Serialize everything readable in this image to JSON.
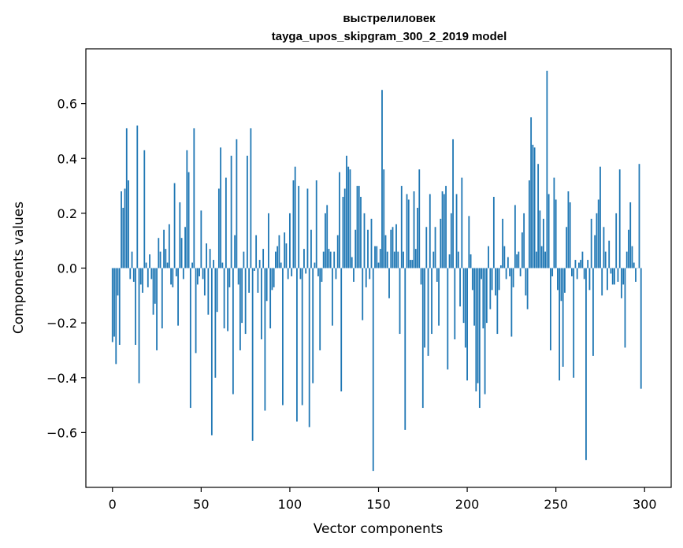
{
  "chart_data": {
    "type": "bar",
    "title_line1": "выстрелиловек",
    "title_line2": "tayga_upos_skipgram_300_2_2019 model",
    "xlabel": "Vector components",
    "ylabel": "Components values",
    "xlim": [
      -15,
      315
    ],
    "ylim": [
      -0.8,
      0.8
    ],
    "xticks": [
      0,
      50,
      100,
      150,
      200,
      250,
      300
    ],
    "xtick_labels": [
      "0",
      "50",
      "100",
      "150",
      "200",
      "250",
      "300"
    ],
    "yticks": [
      -0.6,
      -0.4,
      -0.2,
      0.0,
      0.2,
      0.4,
      0.6
    ],
    "ytick_labels": [
      "−0.6",
      "−0.4",
      "−0.2",
      "0.0",
      "0.2",
      "0.4",
      "0.6"
    ],
    "bar_color": "#1f77b4",
    "values": [
      -0.27,
      -0.25,
      -0.35,
      -0.1,
      -0.28,
      0.28,
      0.22,
      0.29,
      0.51,
      0.32,
      -0.04,
      0.06,
      -0.05,
      -0.28,
      0.52,
      -0.42,
      -0.06,
      -0.09,
      0.43,
      0.02,
      -0.07,
      0.05,
      -0.04,
      -0.17,
      -0.13,
      -0.3,
      0.11,
      0.06,
      -0.22,
      0.14,
      0.07,
      0.02,
      0.16,
      -0.06,
      -0.07,
      0.31,
      -0.03,
      -0.21,
      0.24,
      0.11,
      -0.04,
      0.15,
      0.43,
      0.35,
      -0.51,
      0.02,
      0.51,
      -0.31,
      -0.06,
      -0.03,
      0.21,
      -0.04,
      -0.1,
      0.09,
      -0.17,
      0.07,
      -0.61,
      0.03,
      -0.4,
      -0.16,
      0.29,
      0.44,
      0.02,
      -0.22,
      0.33,
      -0.23,
      -0.07,
      0.41,
      -0.46,
      0.12,
      0.47,
      -0.06,
      -0.3,
      -0.2,
      0.06,
      -0.24,
      0.41,
      -0.09,
      0.51,
      -0.63,
      -0.01,
      0.12,
      -0.09,
      0.03,
      -0.26,
      0.07,
      -0.52,
      -0.12,
      0.2,
      -0.22,
      -0.08,
      -0.07,
      0.06,
      0.08,
      0.12,
      0.02,
      -0.5,
      0.13,
      0.09,
      -0.04,
      0.2,
      -0.03,
      0.32,
      0.37,
      -0.56,
      0.3,
      -0.04,
      -0.5,
      0.07,
      -0.02,
      0.29,
      -0.58,
      0.14,
      -0.42,
      0.02,
      0.32,
      -0.03,
      -0.3,
      -0.05,
      0.06,
      0.2,
      0.23,
      0.07,
      0.06,
      -0.21,
      0.06,
      -0.04,
      0.12,
      0.35,
      -0.45,
      0.26,
      0.29,
      0.41,
      0.37,
      0.36,
      0.04,
      -0.05,
      0.14,
      0.3,
      0.3,
      0.26,
      -0.19,
      0.2,
      -0.07,
      0.14,
      -0.04,
      0.18,
      -0.74,
      0.08,
      0.08,
      0.02,
      0.07,
      0.65,
      0.36,
      0.12,
      0.06,
      -0.11,
      0.14,
      0.15,
      0.06,
      0.16,
      0.06,
      -0.24,
      0.3,
      0.06,
      -0.59,
      0.27,
      0.25,
      0.03,
      0.03,
      0.28,
      0.07,
      0.22,
      0.36,
      -0.06,
      -0.51,
      -0.29,
      0.15,
      -0.32,
      0.27,
      -0.24,
      0.06,
      0.15,
      -0.05,
      -0.21,
      0.18,
      0.28,
      0.27,
      0.3,
      -0.37,
      0.05,
      0.2,
      0.47,
      -0.26,
      0.27,
      0.06,
      -0.14,
      0.33,
      -0.2,
      -0.29,
      -0.41,
      0.19,
      0.05,
      -0.08,
      -0.21,
      -0.45,
      -0.42,
      -0.51,
      -0.04,
      -0.22,
      -0.46,
      -0.2,
      0.08,
      -0.15,
      -0.08,
      0.26,
      -0.1,
      -0.24,
      -0.08,
      0.01,
      0.18,
      0.08,
      -0.04,
      0.04,
      -0.03,
      -0.25,
      -0.07,
      0.23,
      0.05,
      0.06,
      -0.03,
      0.13,
      0.2,
      -0.1,
      -0.15,
      0.32,
      0.55,
      0.45,
      0.44,
      0.06,
      0.38,
      0.21,
      0.08,
      0.18,
      0.06,
      0.72,
      0.27,
      -0.3,
      -0.03,
      0.33,
      0.25,
      -0.08,
      -0.41,
      -0.12,
      -0.36,
      -0.09,
      0.15,
      0.28,
      0.24,
      -0.03,
      -0.4,
      0.03,
      -0.04,
      0.02,
      0.03,
      0.06,
      -0.04,
      -0.7,
      0.03,
      -0.08,
      0.18,
      -0.32,
      0.12,
      0.2,
      0.25,
      0.37,
      -0.1,
      0.15,
      0.06,
      -0.08,
      0.1,
      -0.02,
      -0.06,
      -0.06,
      0.2,
      -0.05,
      0.36,
      -0.11,
      -0.06,
      -0.29,
      0.06,
      0.14,
      0.24,
      0.08,
      0.02,
      -0.05,
      0.0,
      0.38,
      -0.44
    ]
  }
}
